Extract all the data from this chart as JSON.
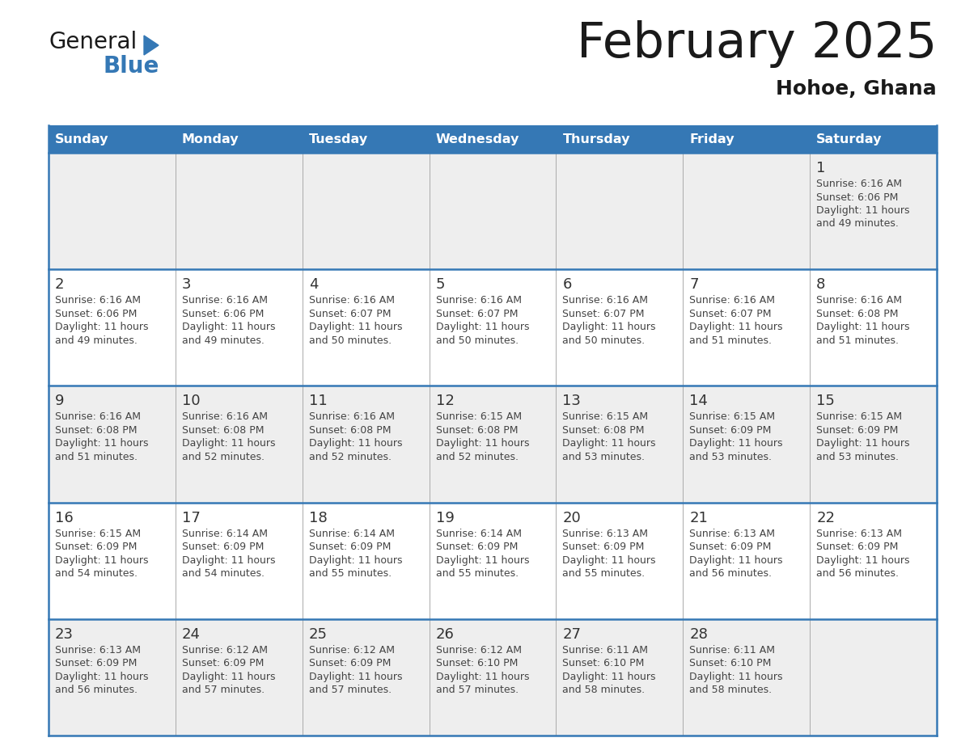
{
  "title": "February 2025",
  "subtitle": "Hohoe, Ghana",
  "header_bg_color": "#3578B5",
  "header_text_color": "#FFFFFF",
  "days_of_week": [
    "Sunday",
    "Monday",
    "Tuesday",
    "Wednesday",
    "Thursday",
    "Friday",
    "Saturday"
  ],
  "row_bg_colors": [
    "#EEEEEE",
    "#FFFFFF",
    "#EEEEEE",
    "#FFFFFF",
    "#EEEEEE"
  ],
  "calendar_data": [
    [
      null,
      null,
      null,
      null,
      null,
      null,
      {
        "day": "1",
        "sunrise": "6:16 AM",
        "sunset": "6:06 PM",
        "daylight1": "11 hours",
        "daylight2": "and 49 minutes."
      }
    ],
    [
      {
        "day": "2",
        "sunrise": "6:16 AM",
        "sunset": "6:06 PM",
        "daylight1": "11 hours",
        "daylight2": "and 49 minutes."
      },
      {
        "day": "3",
        "sunrise": "6:16 AM",
        "sunset": "6:06 PM",
        "daylight1": "11 hours",
        "daylight2": "and 49 minutes."
      },
      {
        "day": "4",
        "sunrise": "6:16 AM",
        "sunset": "6:07 PM",
        "daylight1": "11 hours",
        "daylight2": "and 50 minutes."
      },
      {
        "day": "5",
        "sunrise": "6:16 AM",
        "sunset": "6:07 PM",
        "daylight1": "11 hours",
        "daylight2": "and 50 minutes."
      },
      {
        "day": "6",
        "sunrise": "6:16 AM",
        "sunset": "6:07 PM",
        "daylight1": "11 hours",
        "daylight2": "and 50 minutes."
      },
      {
        "day": "7",
        "sunrise": "6:16 AM",
        "sunset": "6:07 PM",
        "daylight1": "11 hours",
        "daylight2": "and 51 minutes."
      },
      {
        "day": "8",
        "sunrise": "6:16 AM",
        "sunset": "6:08 PM",
        "daylight1": "11 hours",
        "daylight2": "and 51 minutes."
      }
    ],
    [
      {
        "day": "9",
        "sunrise": "6:16 AM",
        "sunset": "6:08 PM",
        "daylight1": "11 hours",
        "daylight2": "and 51 minutes."
      },
      {
        "day": "10",
        "sunrise": "6:16 AM",
        "sunset": "6:08 PM",
        "daylight1": "11 hours",
        "daylight2": "and 52 minutes."
      },
      {
        "day": "11",
        "sunrise": "6:16 AM",
        "sunset": "6:08 PM",
        "daylight1": "11 hours",
        "daylight2": "and 52 minutes."
      },
      {
        "day": "12",
        "sunrise": "6:15 AM",
        "sunset": "6:08 PM",
        "daylight1": "11 hours",
        "daylight2": "and 52 minutes."
      },
      {
        "day": "13",
        "sunrise": "6:15 AM",
        "sunset": "6:08 PM",
        "daylight1": "11 hours",
        "daylight2": "and 53 minutes."
      },
      {
        "day": "14",
        "sunrise": "6:15 AM",
        "sunset": "6:09 PM",
        "daylight1": "11 hours",
        "daylight2": "and 53 minutes."
      },
      {
        "day": "15",
        "sunrise": "6:15 AM",
        "sunset": "6:09 PM",
        "daylight1": "11 hours",
        "daylight2": "and 53 minutes."
      }
    ],
    [
      {
        "day": "16",
        "sunrise": "6:15 AM",
        "sunset": "6:09 PM",
        "daylight1": "11 hours",
        "daylight2": "and 54 minutes."
      },
      {
        "day": "17",
        "sunrise": "6:14 AM",
        "sunset": "6:09 PM",
        "daylight1": "11 hours",
        "daylight2": "and 54 minutes."
      },
      {
        "day": "18",
        "sunrise": "6:14 AM",
        "sunset": "6:09 PM",
        "daylight1": "11 hours",
        "daylight2": "and 55 minutes."
      },
      {
        "day": "19",
        "sunrise": "6:14 AM",
        "sunset": "6:09 PM",
        "daylight1": "11 hours",
        "daylight2": "and 55 minutes."
      },
      {
        "day": "20",
        "sunrise": "6:13 AM",
        "sunset": "6:09 PM",
        "daylight1": "11 hours",
        "daylight2": "and 55 minutes."
      },
      {
        "day": "21",
        "sunrise": "6:13 AM",
        "sunset": "6:09 PM",
        "daylight1": "11 hours",
        "daylight2": "and 56 minutes."
      },
      {
        "day": "22",
        "sunrise": "6:13 AM",
        "sunset": "6:09 PM",
        "daylight1": "11 hours",
        "daylight2": "and 56 minutes."
      }
    ],
    [
      {
        "day": "23",
        "sunrise": "6:13 AM",
        "sunset": "6:09 PM",
        "daylight1": "11 hours",
        "daylight2": "and 56 minutes."
      },
      {
        "day": "24",
        "sunrise": "6:12 AM",
        "sunset": "6:09 PM",
        "daylight1": "11 hours",
        "daylight2": "and 57 minutes."
      },
      {
        "day": "25",
        "sunrise": "6:12 AM",
        "sunset": "6:09 PM",
        "daylight1": "11 hours",
        "daylight2": "and 57 minutes."
      },
      {
        "day": "26",
        "sunrise": "6:12 AM",
        "sunset": "6:10 PM",
        "daylight1": "11 hours",
        "daylight2": "and 57 minutes."
      },
      {
        "day": "27",
        "sunrise": "6:11 AM",
        "sunset": "6:10 PM",
        "daylight1": "11 hours",
        "daylight2": "and 58 minutes."
      },
      {
        "day": "28",
        "sunrise": "6:11 AM",
        "sunset": "6:10 PM",
        "daylight1": "11 hours",
        "daylight2": "and 58 minutes."
      },
      null
    ]
  ],
  "border_color": "#3578B5",
  "day_num_color": "#333333",
  "text_color": "#444444",
  "sep_line_color": "#AAAAAA",
  "logo_general_color": "#1a1a1a",
  "logo_blue_color": "#3578B5",
  "logo_triangle_color": "#3578B5",
  "title_color": "#1a1a1a",
  "subtitle_color": "#1a1a1a"
}
